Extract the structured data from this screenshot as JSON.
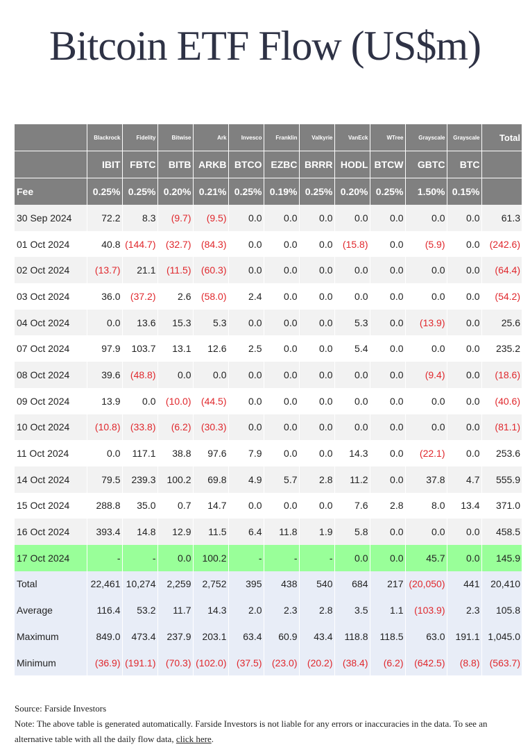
{
  "title": "Bitcoin ETF Flow (US$m)",
  "header": {
    "issuers": [
      "Blackrock",
      "Fidelity",
      "Bitwise",
      "Ark",
      "Invesco",
      "Franklin",
      "Valkyrie",
      "VanEck",
      "WTree",
      "Grayscale",
      "Grayscale"
    ],
    "total_label": "Total",
    "tickers": [
      "IBIT",
      "FBTC",
      "BITB",
      "ARKB",
      "BTCO",
      "EZBC",
      "BRRR",
      "HODL",
      "BTCW",
      "GBTC",
      "BTC"
    ],
    "fee_label": "Fee",
    "fees": [
      "0.25%",
      "0.25%",
      "0.20%",
      "0.21%",
      "0.25%",
      "0.19%",
      "0.25%",
      "0.20%",
      "0.25%",
      "1.50%",
      "0.15%"
    ]
  },
  "rows": [
    {
      "date": "30 Sep 2024",
      "values": [
        "72.2",
        "8.3",
        "(9.7)",
        "(9.5)",
        "0.0",
        "0.0",
        "0.0",
        "0.0",
        "0.0",
        "0.0",
        "0.0",
        "61.3"
      ]
    },
    {
      "date": "01 Oct 2024",
      "values": [
        "40.8",
        "(144.7)",
        "(32.7)",
        "(84.3)",
        "0.0",
        "0.0",
        "0.0",
        "(15.8)",
        "0.0",
        "(5.9)",
        "0.0",
        "(242.6)"
      ]
    },
    {
      "date": "02 Oct 2024",
      "values": [
        "(13.7)",
        "21.1",
        "(11.5)",
        "(60.3)",
        "0.0",
        "0.0",
        "0.0",
        "0.0",
        "0.0",
        "0.0",
        "0.0",
        "(64.4)"
      ]
    },
    {
      "date": "03 Oct 2024",
      "values": [
        "36.0",
        "(37.2)",
        "2.6",
        "(58.0)",
        "2.4",
        "0.0",
        "0.0",
        "0.0",
        "0.0",
        "0.0",
        "0.0",
        "(54.2)"
      ]
    },
    {
      "date": "04 Oct 2024",
      "values": [
        "0.0",
        "13.6",
        "15.3",
        "5.3",
        "0.0",
        "0.0",
        "0.0",
        "5.3",
        "0.0",
        "(13.9)",
        "0.0",
        "25.6"
      ]
    },
    {
      "date": "07 Oct 2024",
      "values": [
        "97.9",
        "103.7",
        "13.1",
        "12.6",
        "2.5",
        "0.0",
        "0.0",
        "5.4",
        "0.0",
        "0.0",
        "0.0",
        "235.2"
      ]
    },
    {
      "date": "08 Oct 2024",
      "values": [
        "39.6",
        "(48.8)",
        "0.0",
        "0.0",
        "0.0",
        "0.0",
        "0.0",
        "0.0",
        "0.0",
        "(9.4)",
        "0.0",
        "(18.6)"
      ]
    },
    {
      "date": "09 Oct 2024",
      "values": [
        "13.9",
        "0.0",
        "(10.0)",
        "(44.5)",
        "0.0",
        "0.0",
        "0.0",
        "0.0",
        "0.0",
        "0.0",
        "0.0",
        "(40.6)"
      ]
    },
    {
      "date": "10 Oct 2024",
      "values": [
        "(10.8)",
        "(33.8)",
        "(6.2)",
        "(30.3)",
        "0.0",
        "0.0",
        "0.0",
        "0.0",
        "0.0",
        "0.0",
        "0.0",
        "(81.1)"
      ]
    },
    {
      "date": "11 Oct 2024",
      "values": [
        "0.0",
        "117.1",
        "38.8",
        "97.6",
        "7.9",
        "0.0",
        "0.0",
        "14.3",
        "0.0",
        "(22.1)",
        "0.0",
        "253.6"
      ]
    },
    {
      "date": "14 Oct 2024",
      "values": [
        "79.5",
        "239.3",
        "100.2",
        "69.8",
        "4.9",
        "5.7",
        "2.8",
        "11.2",
        "0.0",
        "37.8",
        "4.7",
        "555.9"
      ]
    },
    {
      "date": "15 Oct 2024",
      "values": [
        "288.8",
        "35.0",
        "0.7",
        "14.7",
        "0.0",
        "0.0",
        "0.0",
        "7.6",
        "2.8",
        "8.0",
        "13.4",
        "371.0"
      ]
    },
    {
      "date": "16 Oct 2024",
      "values": [
        "393.4",
        "14.8",
        "12.9",
        "11.5",
        "6.4",
        "11.8",
        "1.9",
        "5.8",
        "0.0",
        "0.0",
        "0.0",
        "458.5"
      ]
    },
    {
      "date": "17 Oct 2024",
      "values": [
        "-",
        "-",
        "0.0",
        "100.2",
        "-",
        "-",
        "-",
        "0.0",
        "0.0",
        "45.7",
        "0.0",
        "145.9"
      ],
      "highlight": true
    }
  ],
  "summary": [
    {
      "label": "Total",
      "values": [
        "22,461",
        "10,274",
        "2,259",
        "2,752",
        "395",
        "438",
        "540",
        "684",
        "217",
        "(20,050)",
        "441",
        "20,410"
      ]
    },
    {
      "label": "Average",
      "values": [
        "116.4",
        "53.2",
        "11.7",
        "14.3",
        "2.0",
        "2.3",
        "2.8",
        "3.5",
        "1.1",
        "(103.9)",
        "2.3",
        "105.8"
      ]
    },
    {
      "label": "Maximum",
      "values": [
        "849.0",
        "473.4",
        "237.9",
        "203.1",
        "63.4",
        "60.9",
        "43.4",
        "118.8",
        "118.5",
        "63.0",
        "191.1",
        "1,045.0"
      ]
    },
    {
      "label": "Minimum",
      "values": [
        "(36.9)",
        "(191.1)",
        "(70.3)",
        "(102.0)",
        "(37.5)",
        "(23.0)",
        "(20.2)",
        "(38.4)",
        "(6.2)",
        "(642.5)",
        "(8.8)",
        "(563.7)"
      ]
    }
  ],
  "footer": {
    "source": "Source: Farside Investors",
    "note": "Note: The above table is generated automatically. Farside Investors is not liable for any errors or inaccuracies in the data. To see an alternative table with all the daily flow data,",
    "link_text": "click here",
    "trailing": "."
  },
  "colors": {
    "header_bg": "#808080",
    "negative": "#e0272c",
    "highlight_row": "#99ff99",
    "summary_bg": "#e8edf7",
    "title": "#2e3245"
  }
}
